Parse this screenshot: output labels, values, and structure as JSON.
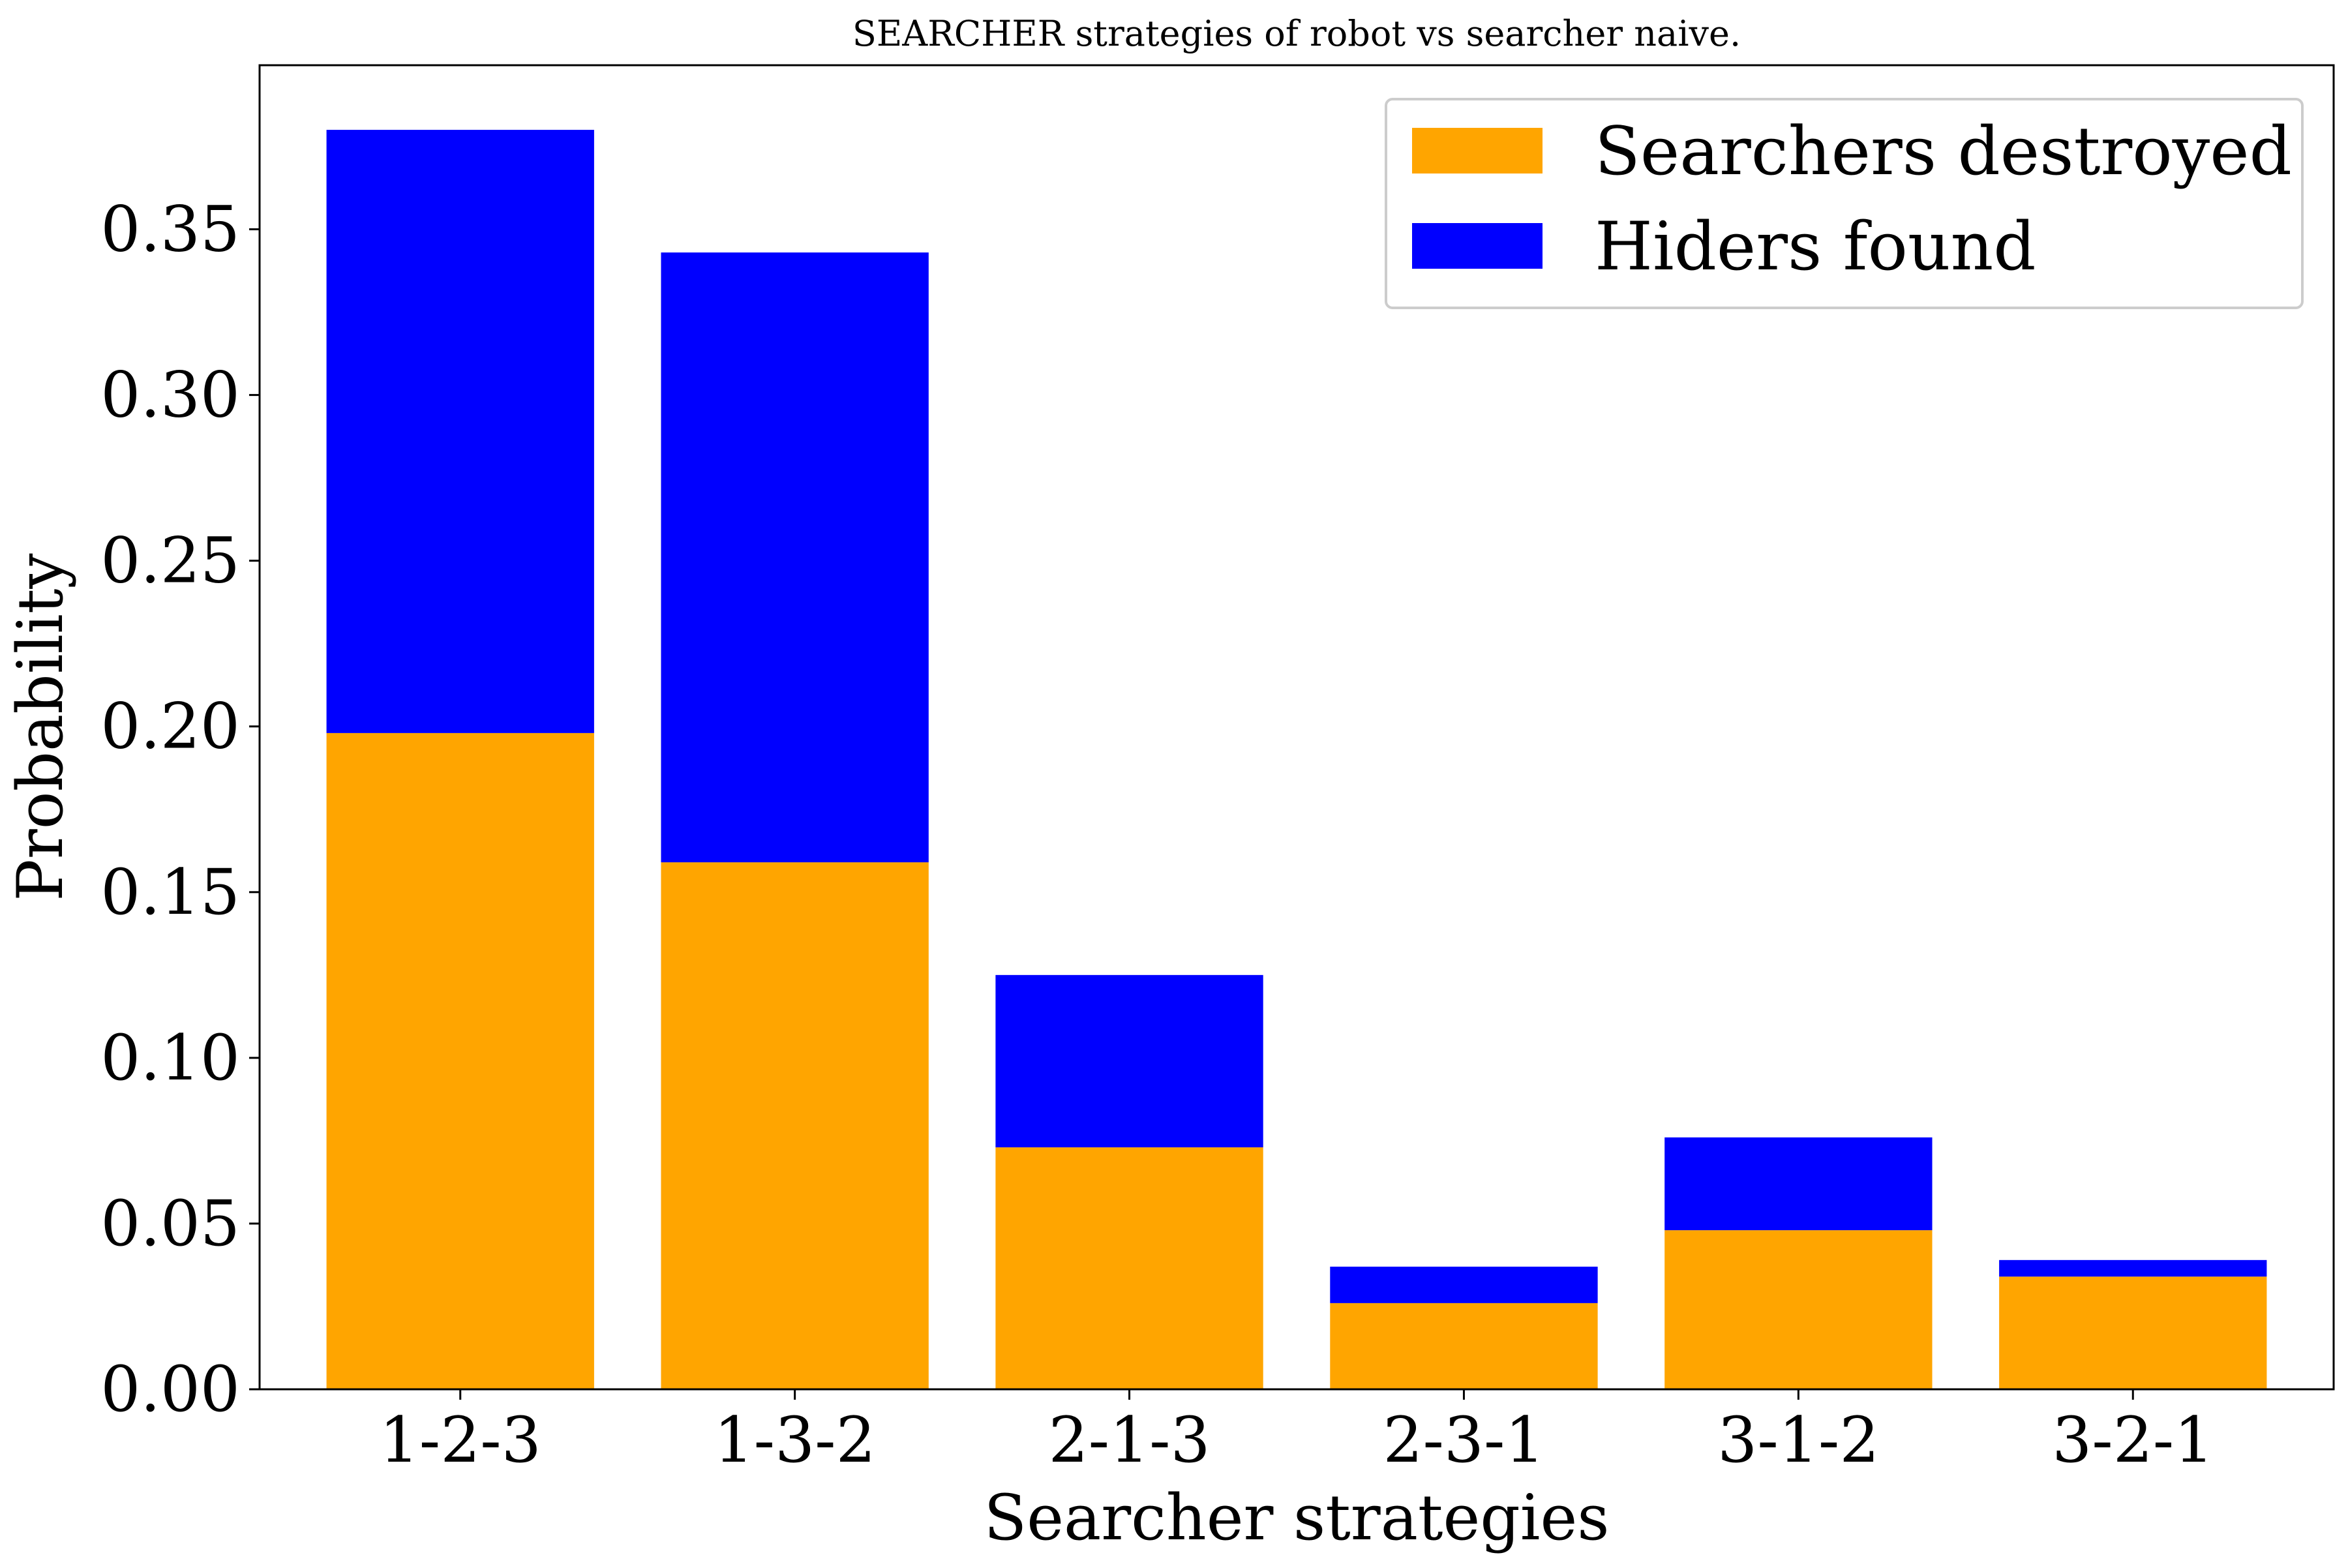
{
  "chart_data": {
    "type": "bar",
    "stacked": true,
    "title": "SEARCHER strategies of robot vs searcher naive.",
    "xlabel": "Searcher strategies",
    "ylabel": "Probability",
    "categories": [
      "1-2-3",
      "1-3-2",
      "2-1-3",
      "2-3-1",
      "3-1-2",
      "3-2-1"
    ],
    "series": [
      {
        "name": "Searchers destroyed",
        "color": "#ffa500",
        "values": [
          0.198,
          0.159,
          0.073,
          0.026,
          0.048,
          0.034
        ]
      },
      {
        "name": "Hiders found",
        "color": "#0000ff",
        "values": [
          0.182,
          0.184,
          0.052,
          0.011,
          0.028,
          0.005
        ]
      }
    ],
    "ylim": [
      0,
      0.3995
    ],
    "yticks": [
      "0.00",
      "0.05",
      "0.10",
      "0.15",
      "0.20",
      "0.25",
      "0.30",
      "0.35"
    ],
    "grid": false,
    "legend_position": "top-right"
  }
}
